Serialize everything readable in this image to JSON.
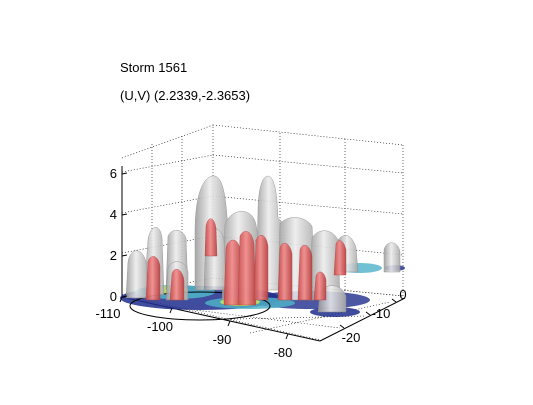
{
  "chart_data": {
    "type": "3d-isosurface",
    "title": "Storm 1561",
    "subtitle": "(U,V) (2.2339,-2.3653)",
    "x_ticks": [
      "-110",
      "-100",
      "-90",
      "-80"
    ],
    "y_ticks": [
      "0",
      "-10",
      "-20"
    ],
    "z_ticks": [
      "0",
      "2",
      "4",
      "6"
    ],
    "xlim": [
      -110,
      -78
    ],
    "ylim": [
      -22,
      2
    ],
    "zlim": [
      0,
      6.5
    ],
    "grid": true,
    "colors": {
      "outer_surface": "#c8c8c8",
      "inner_surface": "#e06060",
      "base_low": "#1e2d8c",
      "base_mid": "#4fb0c8",
      "base_high": "#b4dc6e"
    }
  }
}
